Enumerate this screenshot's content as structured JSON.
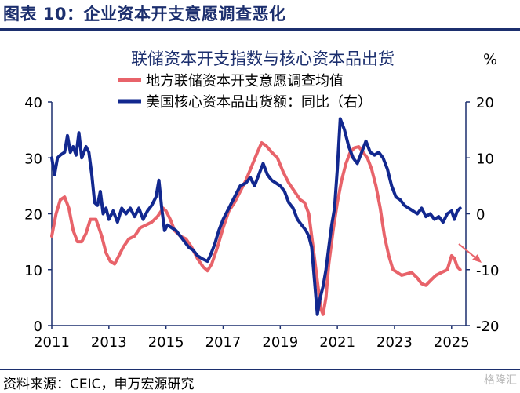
{
  "figure_title": "图表 10：企业资本开支意愿调查恶化",
  "source": "资料来源：CEIC，申万宏源研究",
  "watermark": "格隆汇",
  "colors": {
    "navy": "#1c2f6e",
    "red": "#e8636a",
    "series2": "#12288f",
    "arrow": "#e8636a"
  },
  "chart_data": {
    "type": "line",
    "title": "联储资本开支指数与核心资本品出货",
    "right_axis_unit": "%",
    "legend_placement": "top",
    "grid": false,
    "x_ticks": [
      "2011",
      "2013",
      "2015",
      "2017",
      "2019",
      "2021",
      "2023",
      "2025"
    ],
    "x_range": [
      2011.0,
      2025.5
    ],
    "y_left": {
      "ticks": [
        "0",
        "10",
        "20",
        "30",
        "40"
      ],
      "range": [
        0,
        40
      ]
    },
    "y_right": {
      "ticks": [
        "-20",
        "-10",
        "0",
        "10",
        "20"
      ],
      "range": [
        -20,
        20
      ]
    },
    "series": [
      {
        "name": "地方联储资本开支意愿调查均值",
        "axis": "left",
        "color": "#e8636a",
        "points": [
          [
            2011.0,
            16
          ],
          [
            2011.15,
            20
          ],
          [
            2011.3,
            22.5
          ],
          [
            2011.45,
            23
          ],
          [
            2011.6,
            21
          ],
          [
            2011.75,
            17
          ],
          [
            2011.9,
            15
          ],
          [
            2012.05,
            15
          ],
          [
            2012.2,
            16.5
          ],
          [
            2012.35,
            19
          ],
          [
            2012.55,
            19
          ],
          [
            2012.75,
            16
          ],
          [
            2012.9,
            13
          ],
          [
            2013.05,
            11.5
          ],
          [
            2013.2,
            11
          ],
          [
            2013.35,
            12.5
          ],
          [
            2013.5,
            14
          ],
          [
            2013.7,
            15.5
          ],
          [
            2013.9,
            16
          ],
          [
            2014.1,
            17.5
          ],
          [
            2014.3,
            18
          ],
          [
            2014.5,
            18.5
          ],
          [
            2014.7,
            19.5
          ],
          [
            2014.9,
            21
          ],
          [
            2015.0,
            20.5
          ],
          [
            2015.15,
            19
          ],
          [
            2015.3,
            17
          ],
          [
            2015.5,
            16
          ],
          [
            2015.7,
            15.5
          ],
          [
            2015.9,
            14
          ],
          [
            2016.1,
            12
          ],
          [
            2016.3,
            10.5
          ],
          [
            2016.45,
            9.8
          ],
          [
            2016.6,
            11
          ],
          [
            2016.8,
            14
          ],
          [
            2017.0,
            17.5
          ],
          [
            2017.2,
            20.5
          ],
          [
            2017.4,
            22
          ],
          [
            2017.6,
            24
          ],
          [
            2017.8,
            26
          ],
          [
            2018.0,
            28.5
          ],
          [
            2018.2,
            31
          ],
          [
            2018.35,
            32.7
          ],
          [
            2018.5,
            32.2
          ],
          [
            2018.7,
            31
          ],
          [
            2018.9,
            30
          ],
          [
            2019.1,
            27.5
          ],
          [
            2019.3,
            25.5
          ],
          [
            2019.5,
            24
          ],
          [
            2019.7,
            22.5
          ],
          [
            2019.85,
            22
          ],
          [
            2020.0,
            20
          ],
          [
            2020.15,
            14
          ],
          [
            2020.3,
            8
          ],
          [
            2020.42,
            3
          ],
          [
            2020.5,
            2
          ],
          [
            2020.6,
            5
          ],
          [
            2020.7,
            11
          ],
          [
            2020.85,
            17
          ],
          [
            2021.0,
            22
          ],
          [
            2021.15,
            26
          ],
          [
            2021.3,
            29
          ],
          [
            2021.45,
            31
          ],
          [
            2021.6,
            31.8
          ],
          [
            2021.75,
            32
          ],
          [
            2021.9,
            31
          ],
          [
            2022.05,
            30
          ],
          [
            2022.2,
            28
          ],
          [
            2022.35,
            25
          ],
          [
            2022.5,
            21
          ],
          [
            2022.65,
            16
          ],
          [
            2022.8,
            12.5
          ],
          [
            2022.95,
            10
          ],
          [
            2023.1,
            9.5
          ],
          [
            2023.25,
            9
          ],
          [
            2023.4,
            9.2
          ],
          [
            2023.6,
            9.5
          ],
          [
            2023.8,
            8.5
          ],
          [
            2023.95,
            7.5
          ],
          [
            2024.1,
            7.2
          ],
          [
            2024.25,
            8
          ],
          [
            2024.45,
            9
          ],
          [
            2024.65,
            9.5
          ],
          [
            2024.85,
            10
          ],
          [
            2025.0,
            12.5
          ],
          [
            2025.1,
            12
          ],
          [
            2025.2,
            10.5
          ],
          [
            2025.3,
            10
          ]
        ]
      },
      {
        "name": "美国核心资本品出货额：同比（右）",
        "axis": "right",
        "color": "#12288f",
        "points": [
          [
            2011.0,
            10
          ],
          [
            2011.1,
            7
          ],
          [
            2011.2,
            10
          ],
          [
            2011.3,
            10.5
          ],
          [
            2011.45,
            11
          ],
          [
            2011.55,
            14
          ],
          [
            2011.65,
            11
          ],
          [
            2011.75,
            12
          ],
          [
            2011.85,
            10.5
          ],
          [
            2011.95,
            14.5
          ],
          [
            2012.05,
            10
          ],
          [
            2012.2,
            12
          ],
          [
            2012.3,
            11
          ],
          [
            2012.4,
            7
          ],
          [
            2012.5,
            2
          ],
          [
            2012.6,
            1.5
          ],
          [
            2012.7,
            4
          ],
          [
            2012.8,
            0
          ],
          [
            2012.9,
            1
          ],
          [
            2013.0,
            -1
          ],
          [
            2013.15,
            0.5
          ],
          [
            2013.3,
            -1.5
          ],
          [
            2013.45,
            1
          ],
          [
            2013.6,
            0
          ],
          [
            2013.75,
            1
          ],
          [
            2013.9,
            -0.5
          ],
          [
            2014.05,
            1
          ],
          [
            2014.2,
            -1
          ],
          [
            2014.35,
            0.5
          ],
          [
            2014.5,
            1.5
          ],
          [
            2014.65,
            3
          ],
          [
            2014.75,
            6
          ],
          [
            2014.85,
            1
          ],
          [
            2014.95,
            -3
          ],
          [
            2015.05,
            -2
          ],
          [
            2015.2,
            -2.5
          ],
          [
            2015.35,
            -3
          ],
          [
            2015.5,
            -4
          ],
          [
            2015.65,
            -5
          ],
          [
            2015.8,
            -6
          ],
          [
            2015.95,
            -6.5
          ],
          [
            2016.1,
            -7.5
          ],
          [
            2016.25,
            -8
          ],
          [
            2016.45,
            -8.5
          ],
          [
            2016.55,
            -7.5
          ],
          [
            2016.7,
            -5.5
          ],
          [
            2016.85,
            -3
          ],
          [
            2017.0,
            -1
          ],
          [
            2017.2,
            1
          ],
          [
            2017.4,
            3
          ],
          [
            2017.6,
            5
          ],
          [
            2017.8,
            5.5
          ],
          [
            2017.95,
            6.5
          ],
          [
            2018.1,
            5
          ],
          [
            2018.25,
            7
          ],
          [
            2018.4,
            9
          ],
          [
            2018.55,
            7
          ],
          [
            2018.7,
            6
          ],
          [
            2018.85,
            5.5
          ],
          [
            2019.0,
            5
          ],
          [
            2019.15,
            4
          ],
          [
            2019.3,
            2
          ],
          [
            2019.45,
            1
          ],
          [
            2019.6,
            -1
          ],
          [
            2019.75,
            -2
          ],
          [
            2019.9,
            -3
          ],
          [
            2020.0,
            -4
          ],
          [
            2020.1,
            -6
          ],
          [
            2020.2,
            -12
          ],
          [
            2020.3,
            -18
          ],
          [
            2020.4,
            -15
          ],
          [
            2020.5,
            -13
          ],
          [
            2020.6,
            -10
          ],
          [
            2020.7,
            -6
          ],
          [
            2020.8,
            -2
          ],
          [
            2020.9,
            1
          ],
          [
            2021.0,
            8
          ],
          [
            2021.1,
            17
          ],
          [
            2021.25,
            15
          ],
          [
            2021.4,
            12
          ],
          [
            2021.55,
            10
          ],
          [
            2021.7,
            9
          ],
          [
            2021.85,
            11
          ],
          [
            2022.0,
            13
          ],
          [
            2022.15,
            11
          ],
          [
            2022.3,
            10.5
          ],
          [
            2022.45,
            11
          ],
          [
            2022.6,
            10
          ],
          [
            2022.75,
            8
          ],
          [
            2022.9,
            5
          ],
          [
            2023.05,
            3
          ],
          [
            2023.2,
            2.5
          ],
          [
            2023.35,
            1.5
          ],
          [
            2023.5,
            1
          ],
          [
            2023.65,
            0.5
          ],
          [
            2023.8,
            0
          ],
          [
            2023.95,
            1
          ],
          [
            2024.1,
            -0.5
          ],
          [
            2024.25,
            0
          ],
          [
            2024.4,
            -1
          ],
          [
            2024.55,
            -0.5
          ],
          [
            2024.7,
            -1.5
          ],
          [
            2024.85,
            0
          ],
          [
            2025.0,
            0.5
          ],
          [
            2025.1,
            -1
          ],
          [
            2025.2,
            0.5
          ],
          [
            2025.3,
            1
          ]
        ]
      }
    ]
  }
}
